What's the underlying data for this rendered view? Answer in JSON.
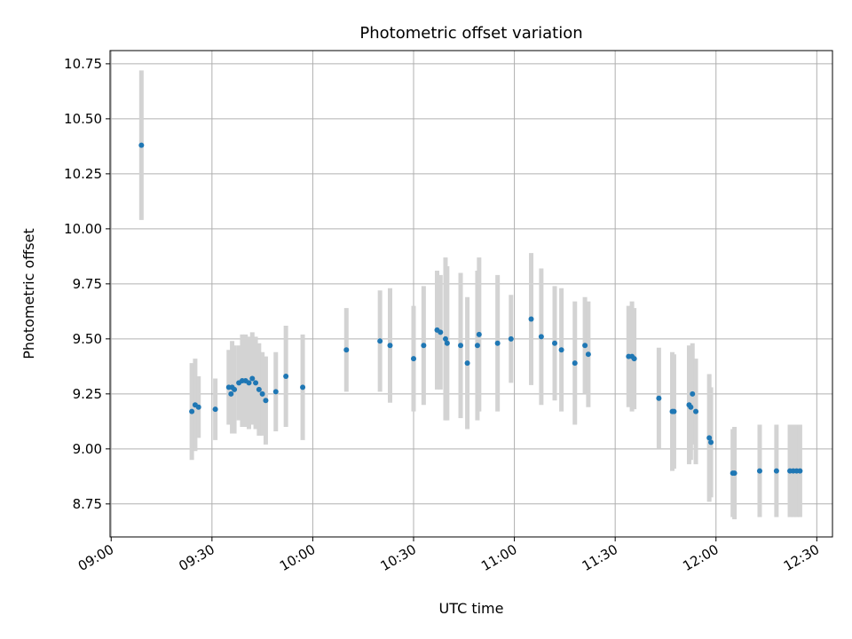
{
  "chart_data": {
    "type": "scatter",
    "title": "Photometric offset variation",
    "xlabel": "UTC time",
    "ylabel": "Photometric offset",
    "x_ticks": [
      "09:00",
      "09:30",
      "10:00",
      "10:30",
      "11:00",
      "11:30",
      "12:00",
      "12:30"
    ],
    "y_ticks": [
      "8.75",
      "9.00",
      "9.25",
      "9.50",
      "9.75",
      "10.00",
      "10.25",
      "10.50",
      "10.75"
    ],
    "xlim": [
      "08:59:40",
      "12:34:40"
    ],
    "ylim": [
      8.6,
      10.81
    ],
    "grid": true,
    "colors": {
      "points": "#1f77b4",
      "errorbars": "#d3d3d3",
      "grid": "#b0b0b0"
    },
    "series": [
      {
        "points": [
          {
            "x": "09:09",
            "y": 10.38,
            "err": 0.34
          },
          {
            "x": "09:24",
            "y": 9.17,
            "err": 0.22
          },
          {
            "x": "09:25",
            "y": 9.2,
            "err": 0.21
          },
          {
            "x": "09:26",
            "y": 9.19,
            "err": 0.14
          },
          {
            "x": "09:31",
            "y": 9.18,
            "err": 0.14
          },
          {
            "x": "09:35",
            "y": 9.28,
            "err": 0.17
          },
          {
            "x": "09:35:40",
            "y": 9.25,
            "err": 0.14
          },
          {
            "x": "09:36",
            "y": 9.28,
            "err": 0.21
          },
          {
            "x": "09:36:40",
            "y": 9.27,
            "err": 0.2
          },
          {
            "x": "09:38",
            "y": 9.3,
            "err": 0.17
          },
          {
            "x": "09:39",
            "y": 9.31,
            "err": 0.21
          },
          {
            "x": "09:40",
            "y": 9.31,
            "err": 0.21
          },
          {
            "x": "09:41",
            "y": 9.3,
            "err": 0.21
          },
          {
            "x": "09:42",
            "y": 9.32,
            "err": 0.21
          },
          {
            "x": "09:43",
            "y": 9.3,
            "err": 0.21
          },
          {
            "x": "09:44",
            "y": 9.27,
            "err": 0.21
          },
          {
            "x": "09:45",
            "y": 9.25,
            "err": 0.19
          },
          {
            "x": "09:46",
            "y": 9.22,
            "err": 0.2
          },
          {
            "x": "09:49",
            "y": 9.26,
            "err": 0.18
          },
          {
            "x": "09:52",
            "y": 9.33,
            "err": 0.23
          },
          {
            "x": "09:57",
            "y": 9.28,
            "err": 0.24
          },
          {
            "x": "10:10",
            "y": 9.45,
            "err": 0.19
          },
          {
            "x": "10:20",
            "y": 9.49,
            "err": 0.23
          },
          {
            "x": "10:23",
            "y": 9.47,
            "err": 0.26
          },
          {
            "x": "10:30",
            "y": 9.41,
            "err": 0.24
          },
          {
            "x": "10:33",
            "y": 9.47,
            "err": 0.27
          },
          {
            "x": "10:37",
            "y": 9.54,
            "err": 0.27
          },
          {
            "x": "10:38",
            "y": 9.53,
            "err": 0.26
          },
          {
            "x": "10:39:30",
            "y": 9.5,
            "err": 0.37
          },
          {
            "x": "10:40",
            "y": 9.48,
            "err": 0.35
          },
          {
            "x": "10:44",
            "y": 9.47,
            "err": 0.33
          },
          {
            "x": "10:46",
            "y": 9.39,
            "err": 0.3
          },
          {
            "x": "10:49",
            "y": 9.47,
            "err": 0.34
          },
          {
            "x": "10:49:30",
            "y": 9.52,
            "err": 0.35
          },
          {
            "x": "10:55",
            "y": 9.48,
            "err": 0.31
          },
          {
            "x": "10:59",
            "y": 9.5,
            "err": 0.2
          },
          {
            "x": "11:05",
            "y": 9.59,
            "err": 0.3
          },
          {
            "x": "11:08",
            "y": 9.51,
            "err": 0.31
          },
          {
            "x": "11:12",
            "y": 9.48,
            "err": 0.26
          },
          {
            "x": "11:14",
            "y": 9.45,
            "err": 0.28
          },
          {
            "x": "11:18",
            "y": 9.39,
            "err": 0.28
          },
          {
            "x": "11:21",
            "y": 9.47,
            "err": 0.22
          },
          {
            "x": "11:22",
            "y": 9.43,
            "err": 0.24
          },
          {
            "x": "11:34",
            "y": 9.42,
            "err": 0.23
          },
          {
            "x": "11:35",
            "y": 9.42,
            "err": 0.25
          },
          {
            "x": "11:35:40",
            "y": 9.41,
            "err": 0.23
          },
          {
            "x": "11:43",
            "y": 9.23,
            "err": 0.23
          },
          {
            "x": "11:47",
            "y": 9.17,
            "err": 0.27
          },
          {
            "x": "11:47:30",
            "y": 9.17,
            "err": 0.26
          },
          {
            "x": "11:52",
            "y": 9.2,
            "err": 0.27
          },
          {
            "x": "11:52:30",
            "y": 9.19,
            "err": 0.24
          },
          {
            "x": "11:53",
            "y": 9.25,
            "err": 0.23
          },
          {
            "x": "11:54",
            "y": 9.17,
            "err": 0.24
          },
          {
            "x": "11:58",
            "y": 9.05,
            "err": 0.29
          },
          {
            "x": "11:58:30",
            "y": 9.03,
            "err": 0.25
          },
          {
            "x": "12:05",
            "y": 8.89,
            "err": 0.2
          },
          {
            "x": "12:05:30",
            "y": 8.89,
            "err": 0.21
          },
          {
            "x": "12:13",
            "y": 8.9,
            "err": 0.21
          },
          {
            "x": "12:18",
            "y": 8.9,
            "err": 0.21
          },
          {
            "x": "12:22",
            "y": 8.9,
            "err": 0.21
          },
          {
            "x": "12:23",
            "y": 8.9,
            "err": 0.21
          },
          {
            "x": "12:24",
            "y": 8.9,
            "err": 0.21
          },
          {
            "x": "12:25",
            "y": 8.9,
            "err": 0.21
          }
        ]
      }
    ]
  }
}
